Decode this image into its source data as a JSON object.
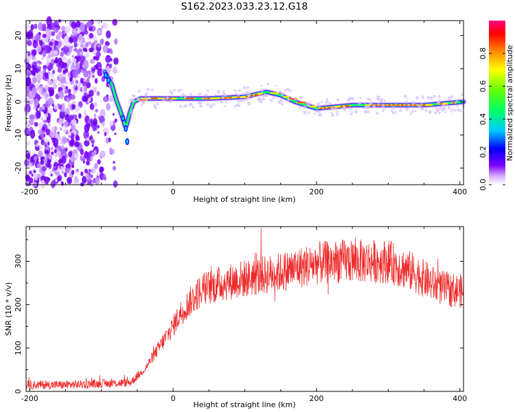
{
  "title": "S162.2023.033.23.12.G18",
  "chart_data": [
    {
      "type": "heatmap",
      "xlabel": "Height of straight line (km)",
      "ylabel": "Frequency (Hz)",
      "xlim": [
        -205,
        405
      ],
      "ylim": [
        -25,
        24.5
      ],
      "x_ticks": [
        -200,
        0,
        200,
        400
      ],
      "y_ticks": [
        -20,
        -10,
        0,
        10,
        20
      ],
      "colorbar": {
        "label": "Normalized spectral amplitude",
        "range": [
          0,
          1
        ],
        "ticks": [
          0.0,
          0.2,
          0.4,
          0.6,
          0.8
        ]
      },
      "noise_region_x": [
        -205,
        -85
      ],
      "ridge": [
        {
          "x": -95,
          "y": 9
        },
        {
          "x": -90,
          "y": 7
        },
        {
          "x": -85,
          "y": 5
        },
        {
          "x": -80,
          "y": 1
        },
        {
          "x": -75,
          "y": -2
        },
        {
          "x": -70,
          "y": -5
        },
        {
          "x": -66,
          "y": -8
        },
        {
          "x": -60,
          "y": -3
        },
        {
          "x": -55,
          "y": 0
        },
        {
          "x": -45,
          "y": 1
        },
        {
          "x": -30,
          "y": 1
        },
        {
          "x": 0,
          "y": 1
        },
        {
          "x": 50,
          "y": 1
        },
        {
          "x": 100,
          "y": 1.5
        },
        {
          "x": 130,
          "y": 3
        },
        {
          "x": 150,
          "y": 2
        },
        {
          "x": 170,
          "y": 0
        },
        {
          "x": 200,
          "y": -2
        },
        {
          "x": 250,
          "y": -1
        },
        {
          "x": 300,
          "y": -1
        },
        {
          "x": 350,
          "y": -1
        },
        {
          "x": 405,
          "y": 0
        }
      ]
    },
    {
      "type": "line",
      "xlabel": "Height of straight line (km)",
      "ylabel": "SNR (10 * v/v)",
      "xlim": [
        -205,
        405
      ],
      "ylim": [
        0,
        380
      ],
      "x_ticks": [
        -200,
        0,
        200,
        400
      ],
      "y_ticks": [
        0,
        100,
        200,
        300
      ],
      "color": "#ee2b2b",
      "series": [
        {
          "x": [
            -205,
            -150,
            -100,
            -60,
            -40,
            -20,
            0,
            10,
            20,
            40,
            70,
            100,
            150,
            200,
            230,
            260,
            300,
            340,
            370,
            405
          ],
          "y": [
            15,
            15,
            18,
            20,
            50,
            100,
            150,
            180,
            200,
            235,
            250,
            260,
            275,
            295,
            300,
            300,
            300,
            270,
            240,
            230
          ]
        }
      ]
    }
  ]
}
